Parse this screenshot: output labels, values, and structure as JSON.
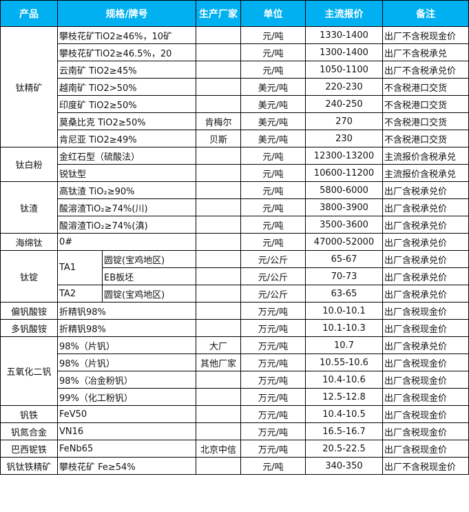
{
  "header": {
    "product": "产品",
    "spec": "规格/牌号",
    "maker": "生产厂家",
    "unit": "单位",
    "price": "主流报价",
    "note": "备注"
  },
  "groups": [
    {
      "product": "钛精矿",
      "items": [
        {
          "spec": "攀枝花矿TiO2≥46%，10矿",
          "maker": "",
          "unit": "元/吨",
          "price": "1330-1400",
          "note": "出厂不含税现金价"
        },
        {
          "spec": "攀枝花矿TiO2≥46.5%，20",
          "maker": "",
          "unit": "元/吨",
          "price": "1300-1400",
          "note": "出厂不含税承兑"
        },
        {
          "spec": "云南矿 TiO2≥45%",
          "maker": "",
          "unit": "元/吨",
          "price": "1050-1100",
          "note": "出厂不含税承兑价"
        },
        {
          "spec": "越南矿 TiO2>50%",
          "maker": "",
          "unit": "美元/吨",
          "price": "220-230",
          "note": "不含税港口交货"
        },
        {
          "spec": "印度矿 TiO2≥50%",
          "maker": "",
          "unit": "美元/吨",
          "price": "240-250",
          "note": "不含税港口交货"
        },
        {
          "spec": "莫桑比克 TiO2≥50%",
          "maker": "肯梅尔",
          "unit": "美元/吨",
          "price": "270",
          "note": "不含税港口交货"
        },
        {
          "spec": "肯尼亚 TiO2≥49%",
          "maker": "贝斯",
          "unit": "美元/吨",
          "price": "230",
          "note": "不含税港口交货"
        }
      ]
    },
    {
      "product": "钛白粉",
      "items": [
        {
          "spec": "金红石型（硫酸法）",
          "maker": "",
          "unit": "元/吨",
          "price": "12300-13200",
          "note": "主流报价含税承兑"
        },
        {
          "spec": "锐钛型",
          "maker": "",
          "unit": "元/吨",
          "price": "10600-11200",
          "note": "主流报价含税承兑"
        }
      ]
    },
    {
      "product": "钛渣",
      "items": [
        {
          "spec": "高钛渣 TiO₂≥90%",
          "maker": "",
          "unit": "元/吨",
          "price": "5800-6000",
          "note": "出厂含税承兑价"
        },
        {
          "spec": "酸溶渣TiO₂≥74%(川)",
          "maker": "",
          "unit": "元/吨",
          "price": "3800-3900",
          "note": "出厂含税承兑价"
        },
        {
          "spec": "酸溶渣TiO₂≥74%(滇)",
          "maker": "",
          "unit": "元/吨",
          "price": "3500-3600",
          "note": "出厂含税承兑价"
        }
      ]
    },
    {
      "product": "海绵钛",
      "items": [
        {
          "spec": "0#",
          "maker": "",
          "unit": "元/吨",
          "price": "47000-52000",
          "note": "出厂含税承兑价"
        }
      ]
    },
    {
      "product": "钛锭",
      "items": [
        {
          "grade": "TA1",
          "gradeSpan": 2,
          "spec": "圆锭(宝鸡地区)",
          "maker": "",
          "unit": "元/公斤",
          "price": "65-67",
          "note": "出厂含税承兑价"
        },
        {
          "spec": "EB板坯",
          "maker": "",
          "unit": "元/公斤",
          "price": "70-73",
          "note": "出厂含税承兑价"
        },
        {
          "grade": "TA2",
          "gradeSpan": 1,
          "spec": "圆锭(宝鸡地区)",
          "maker": "",
          "unit": "元/公斤",
          "price": "63-65",
          "note": "出厂含税承兑价"
        }
      ]
    },
    {
      "product": "偏钒酸铵",
      "items": [
        {
          "spec": "折精钒98%",
          "maker": "",
          "unit": "万元/吨",
          "price": "10.0-10.1",
          "note": "出厂含税现金价"
        }
      ]
    },
    {
      "product": "多钒酸铵",
      "items": [
        {
          "spec": "折精钒98%",
          "maker": "",
          "unit": "万元/吨",
          "price": "10.1-10.3",
          "note": "出厂含税现金价"
        }
      ]
    },
    {
      "product": "五氧化二钒",
      "items": [
        {
          "spec": "98%（片钒）",
          "maker": "大厂",
          "unit": "万元/吨",
          "price": "10.7",
          "note": "出厂含税承兑价"
        },
        {
          "spec": "98%（片钒）",
          "maker": "其他厂家",
          "unit": "万元/吨",
          "price": "10.55-10.6",
          "note": "出厂含税现金价"
        },
        {
          "spec": "98%（冶金粉钒）",
          "maker": "",
          "unit": "万元/吨",
          "price": "10.4-10.6",
          "note": "出厂含税现金价"
        },
        {
          "spec": "99%（化工粉钒）",
          "maker": "",
          "unit": "万元/吨",
          "price": "12.5-12.8",
          "note": "出厂含税现金价"
        }
      ]
    },
    {
      "product": "钒铁",
      "items": [
        {
          "spec": "FeV50",
          "maker": "",
          "unit": "万元/吨",
          "price": "10.4-10.5",
          "note": "出厂含税现金价"
        }
      ]
    },
    {
      "product": "钒氮合金",
      "items": [
        {
          "spec": "VN16",
          "maker": "",
          "unit": "万元/吨",
          "price": "16.5-16.7",
          "note": "出厂含税现金价"
        }
      ]
    },
    {
      "product": "巴西铌铁",
      "items": [
        {
          "spec": "FeNb65",
          "maker": "北京中信",
          "unit": "万元/吨",
          "price": "20.5-22.5",
          "note": "出厂含税现金价"
        }
      ]
    },
    {
      "product": "钒钛铁精矿",
      "items": [
        {
          "spec": "攀枝花矿 Fe≥54%",
          "maker": "",
          "unit": "元/吨",
          "price": "340-350",
          "note": "出厂不含税现金价"
        }
      ]
    }
  ]
}
